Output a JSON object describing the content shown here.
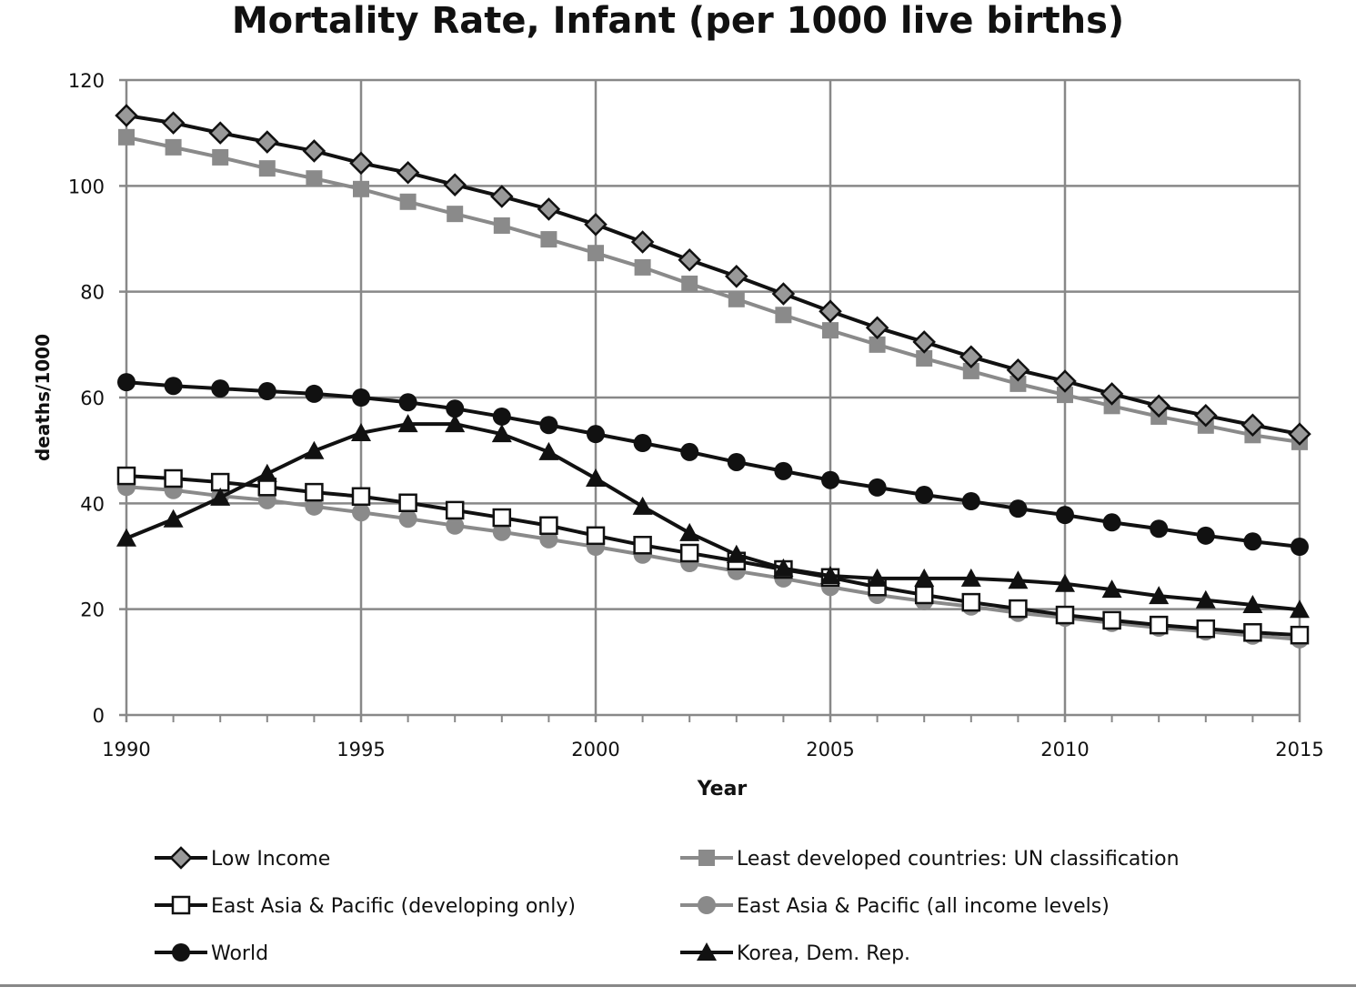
{
  "chart_data": {
    "type": "line",
    "title": "Mortality Rate, Infant (per 1000 live births)",
    "xlabel": "Year",
    "ylabel": "deaths/1000",
    "xlim": [
      1990,
      2015
    ],
    "ylim": [
      0,
      120
    ],
    "xticks": [
      "1990",
      "1995",
      "2000",
      "2005",
      "2010",
      "2015"
    ],
    "yticks": [
      "0",
      "20",
      "40",
      "60",
      "80",
      "100",
      "120"
    ],
    "grid": true,
    "legend_position": "bottom",
    "x": [
      1990,
      1991,
      1992,
      1993,
      1994,
      1995,
      1996,
      1997,
      1998,
      1999,
      2000,
      2001,
      2002,
      2003,
      2004,
      2005,
      2006,
      2007,
      2008,
      2009,
      2010,
      2011,
      2012,
      2013,
      2014,
      2015
    ],
    "series": [
      {
        "name": "Low Income",
        "marker": "diamond-open-gray",
        "line_color": "#111111",
        "values": [
          113.3,
          111.9,
          110.0,
          108.3,
          106.6,
          104.3,
          102.5,
          100.2,
          98.0,
          95.6,
          92.7,
          89.4,
          86.0,
          82.9,
          79.6,
          76.3,
          73.2,
          70.5,
          67.7,
          65.2,
          63.1,
          60.7,
          58.4,
          56.6,
          54.8,
          53.1
        ]
      },
      {
        "name": "Least developed countries: UN classification",
        "marker": "square-filled",
        "line_color": "#8a8a8a",
        "values": [
          109.2,
          107.3,
          105.4,
          103.3,
          101.4,
          99.4,
          97.0,
          94.7,
          92.5,
          89.9,
          87.3,
          84.6,
          81.5,
          78.6,
          75.6,
          72.7,
          70.0,
          67.4,
          65.0,
          62.6,
          60.5,
          58.4,
          56.4,
          54.7,
          52.9,
          51.6
        ]
      },
      {
        "name": "East Asia & Pacific (developing only)",
        "marker": "square-open",
        "line_color": "#111111",
        "values": [
          45.2,
          44.7,
          44.0,
          43.1,
          42.1,
          41.3,
          40.1,
          38.7,
          37.3,
          35.8,
          33.9,
          32.1,
          30.6,
          29.1,
          27.5,
          26.0,
          24.2,
          22.7,
          21.3,
          20.1,
          18.9,
          17.9,
          17.0,
          16.3,
          15.6,
          15.1
        ]
      },
      {
        "name": "East Asia & Pacific (all income levels)",
        "marker": "circle-filled",
        "line_color": "#8a8a8a",
        "values": [
          43.1,
          42.5,
          41.4,
          40.6,
          39.4,
          38.3,
          37.1,
          35.8,
          34.6,
          33.2,
          31.8,
          30.3,
          28.7,
          27.2,
          25.8,
          24.2,
          22.7,
          21.5,
          20.5,
          19.3,
          18.4,
          17.4,
          16.5,
          15.8,
          15.0,
          14.3
        ]
      },
      {
        "name": "World",
        "marker": "circle-filled",
        "line_color": "#111111",
        "values": [
          62.9,
          62.2,
          61.7,
          61.2,
          60.7,
          60.0,
          59.1,
          57.9,
          56.4,
          54.8,
          53.1,
          51.4,
          49.7,
          47.8,
          46.1,
          44.4,
          43.0,
          41.6,
          40.4,
          39.0,
          37.8,
          36.4,
          35.2,
          33.9,
          32.8,
          31.8
        ]
      },
      {
        "name": "Korea, Dem. Rep.",
        "marker": "triangle-filled",
        "line_color": "#111111",
        "values": [
          33.4,
          37.0,
          41.1,
          45.6,
          49.9,
          53.3,
          55.0,
          55.0,
          53.1,
          49.7,
          44.7,
          39.4,
          34.4,
          30.3,
          27.7,
          26.3,
          25.8,
          25.8,
          25.8,
          25.4,
          24.8,
          23.7,
          22.5,
          21.7,
          20.8,
          19.9
        ]
      }
    ]
  }
}
